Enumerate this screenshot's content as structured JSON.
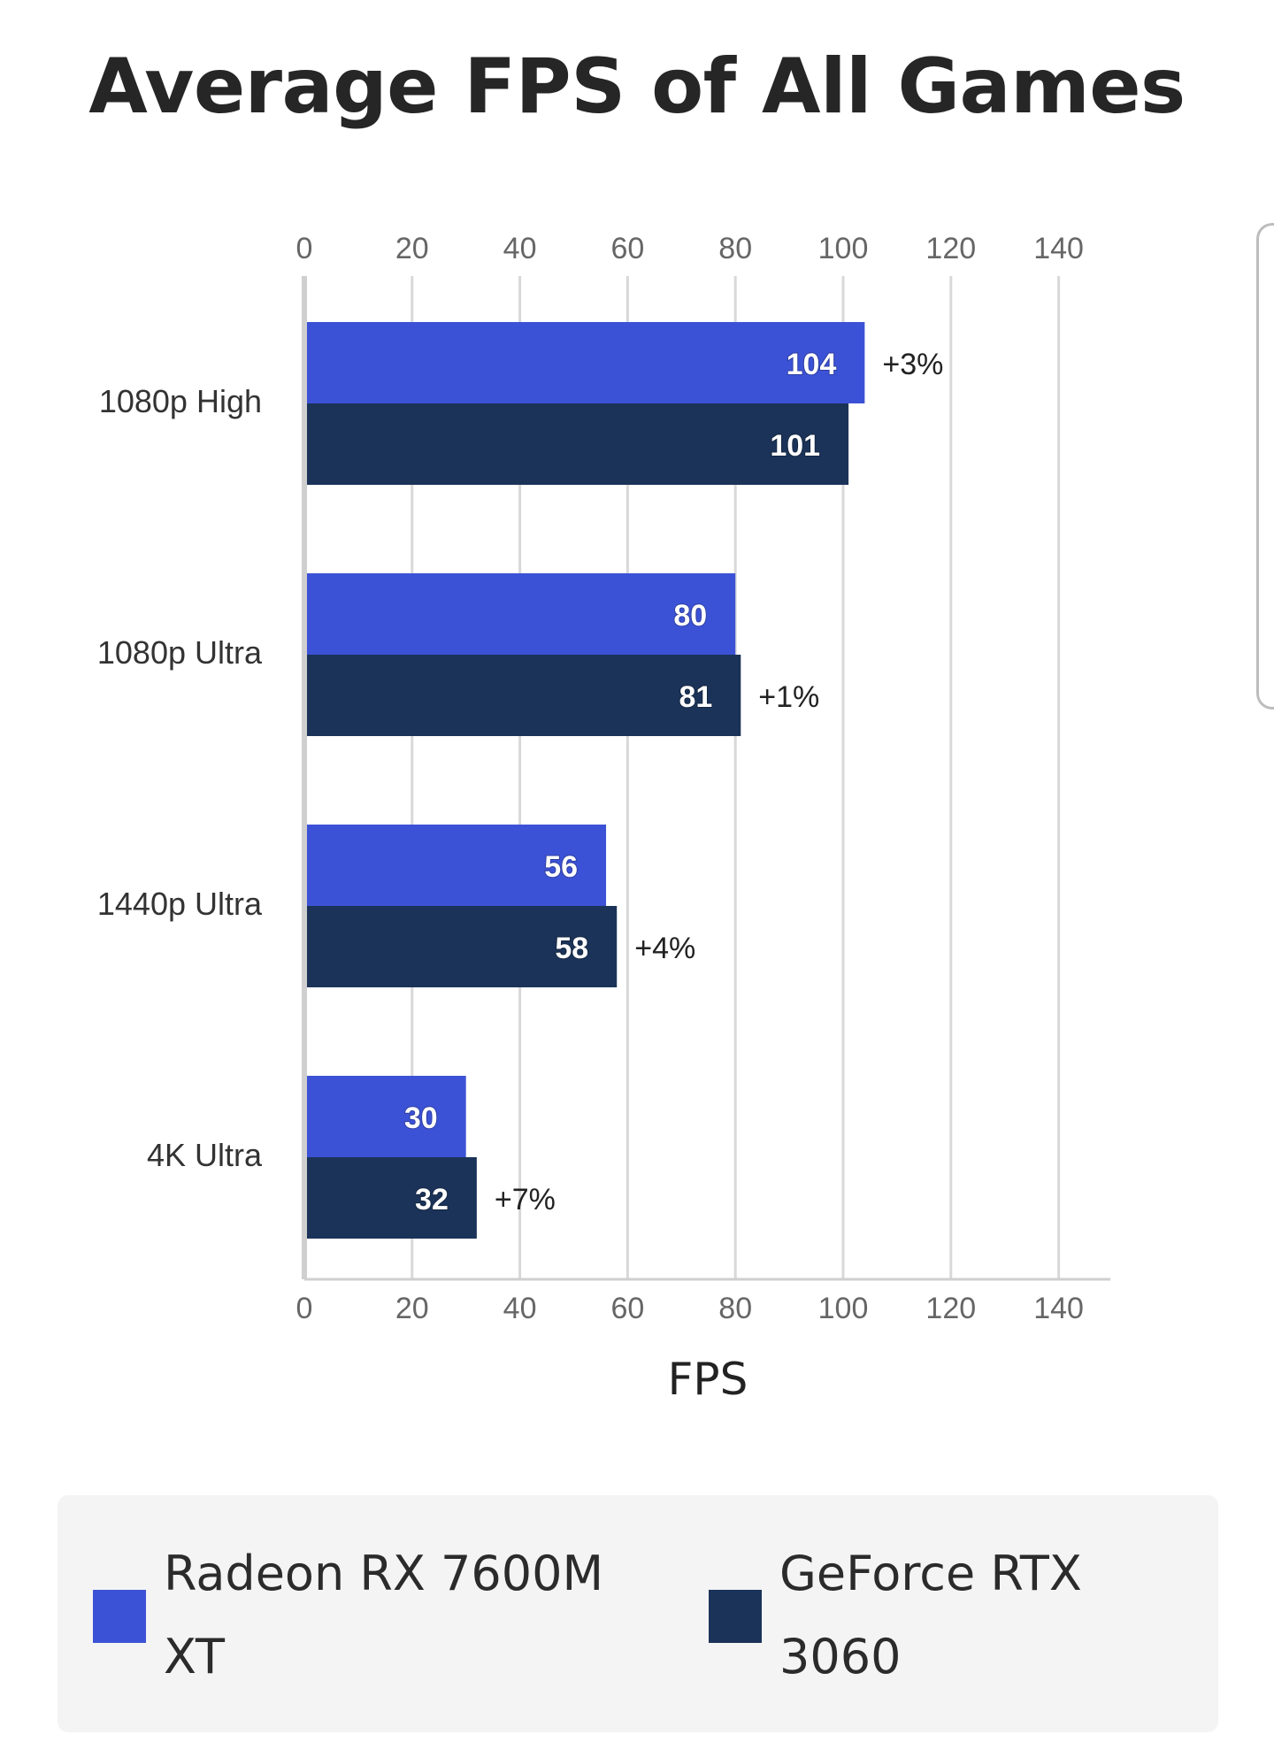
{
  "chart_data": {
    "type": "bar",
    "orientation": "horizontal",
    "title": "Average FPS of All Games",
    "xlabel": "FPS",
    "xlim": [
      0,
      150
    ],
    "x_ticks": [
      0,
      20,
      40,
      60,
      80,
      100,
      120,
      140
    ],
    "x_tick_labels": [
      "0",
      "20",
      "40",
      "60",
      "80",
      "100",
      "120",
      "140"
    ],
    "grid": true,
    "legend_position": "bottom",
    "categories": [
      "1080p High",
      "1080p Ultra",
      "1440p Ultra",
      "4K Ultra"
    ],
    "series": [
      {
        "name": "Radeon RX 7600M XT",
        "color": "#3c52d6",
        "values": [
          104,
          80,
          56,
          30
        ]
      },
      {
        "name": "GeForce RTX 3060",
        "color": "#1b3358",
        "values": [
          101,
          81,
          58,
          32
        ]
      }
    ],
    "annotations": [
      {
        "category": "1080p High",
        "series": "Radeon RX 7600M XT",
        "text": "+3%"
      },
      {
        "category": "1080p Ultra",
        "series": "GeForce RTX 3060",
        "text": "+1%"
      },
      {
        "category": "1440p Ultra",
        "series": "GeForce RTX 3060",
        "text": "+4%"
      },
      {
        "category": "4K Ultra",
        "series": "GeForce RTX 3060",
        "text": "+7%"
      }
    ]
  }
}
